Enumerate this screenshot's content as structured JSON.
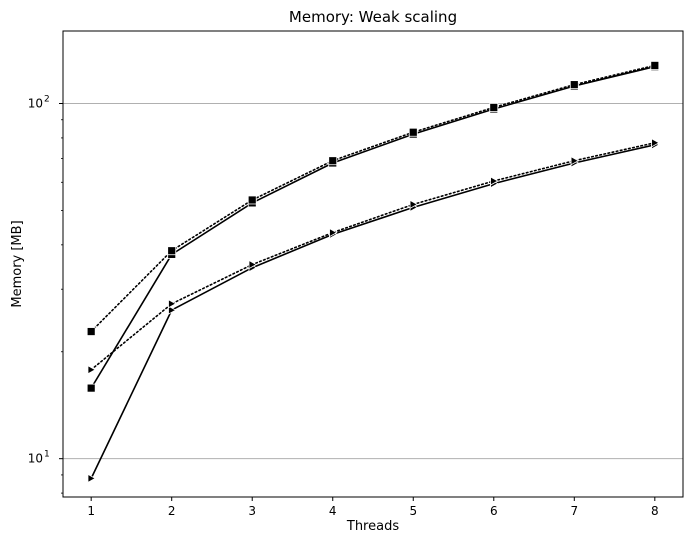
{
  "chart_data": {
    "type": "line",
    "title": "Memory:  Weak scaling",
    "xlabel": "Threads",
    "ylabel": "Memory  [MB]",
    "x": [
      1,
      2,
      3,
      4,
      5,
      6,
      7,
      8
    ],
    "xlim": [
      0.65,
      8.35
    ],
    "ylim": [
      7.8,
      160
    ],
    "yscale": "log",
    "xticks": [
      "1",
      "2",
      "3",
      "4",
      "5",
      "6",
      "7",
      "8"
    ],
    "yticks": [
      {
        "value": 10,
        "base": "10",
        "exp": "1"
      },
      {
        "value": 100,
        "base": "10",
        "exp": "2"
      }
    ],
    "grid": "horizontal major lines at 10 and 100",
    "colors": {
      "series": "#000000",
      "grid": "#b0b0b0"
    },
    "series": [
      {
        "marker": "square",
        "linestyle": "solid",
        "values": [
          15.8,
          37.6,
          52.5,
          68.0,
          82.0,
          96.5,
          112.0,
          127.0
        ]
      },
      {
        "marker": "square",
        "linestyle": "dotted",
        "values": [
          22.8,
          38.5,
          53.5,
          69.0,
          83.0,
          97.5,
          113.0,
          128.0
        ]
      },
      {
        "marker": "triangle-right",
        "linestyle": "solid",
        "values": [
          8.8,
          26.2,
          34.5,
          42.8,
          51.0,
          59.5,
          68.0,
          76.5
        ]
      },
      {
        "marker": "triangle-right",
        "linestyle": "dotted",
        "values": [
          17.8,
          27.3,
          35.2,
          43.3,
          52.0,
          60.5,
          69.0,
          77.5
        ]
      }
    ]
  }
}
